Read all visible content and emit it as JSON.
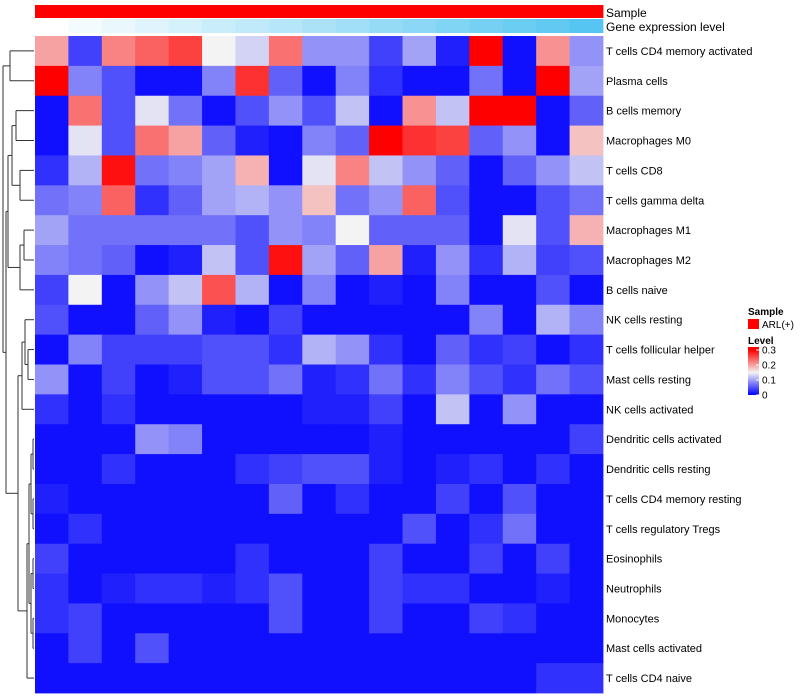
{
  "chart_data": {
    "type": "heatmap",
    "annotations": {
      "sample_label": "Sample",
      "gene_expression_label": "Gene expression level"
    },
    "row_labels": [
      "T cells CD4 memory activated",
      "Plasma cells",
      "B cells memory",
      "Macrophages M0",
      "T cells CD8",
      "T cells gamma delta",
      "Macrophages M1",
      "Macrophages M2",
      "B cells naive",
      "NK cells resting",
      "T cells follicular helper",
      "Mast cells resting",
      "NK cells activated",
      "Dendritic cells activated",
      "Dendritic cells resting",
      "T cells CD4 memory resting",
      "T cells regulatory  Tregs",
      "Eosinophils",
      "Neutrophils",
      "Monocytes",
      "Mast cells activated",
      "T cells CD4 naive"
    ],
    "values": [
      [
        0.2,
        0.04,
        0.22,
        0.24,
        0.26,
        0.15,
        0.13,
        0.23,
        0.09,
        0.09,
        0.04,
        0.1,
        0.02,
        0.32,
        0.01,
        0.21,
        0.09
      ],
      [
        0.32,
        0.08,
        0.05,
        0.01,
        0.01,
        0.08,
        0.27,
        0.06,
        0.01,
        0.08,
        0.03,
        0.01,
        0.01,
        0.07,
        0.01,
        0.31,
        0.1
      ],
      [
        0.01,
        0.23,
        0.05,
        0.14,
        0.07,
        0.01,
        0.05,
        0.09,
        0.05,
        0.12,
        0.01,
        0.21,
        0.12,
        0.31,
        0.32,
        0.01,
        0.06
      ],
      [
        0.01,
        0.14,
        0.05,
        0.23,
        0.2,
        0.06,
        0.02,
        0.01,
        0.08,
        0.06,
        0.32,
        0.27,
        0.26,
        0.06,
        0.09,
        0.01,
        0.18
      ],
      [
        0.03,
        0.11,
        0.29,
        0.07,
        0.08,
        0.1,
        0.19,
        0.01,
        0.14,
        0.22,
        0.12,
        0.09,
        0.06,
        0.01,
        0.06,
        0.09,
        0.12
      ],
      [
        0.07,
        0.08,
        0.24,
        0.03,
        0.06,
        0.1,
        0.11,
        0.09,
        0.18,
        0.07,
        0.09,
        0.24,
        0.05,
        0.01,
        0.01,
        0.05,
        0.07
      ],
      [
        0.1,
        0.07,
        0.07,
        0.07,
        0.07,
        0.07,
        0.05,
        0.09,
        0.08,
        0.15,
        0.06,
        0.06,
        0.06,
        0.01,
        0.14,
        0.05,
        0.19
      ],
      [
        0.08,
        0.07,
        0.06,
        0.01,
        0.02,
        0.12,
        0.05,
        0.29,
        0.1,
        0.06,
        0.2,
        0.02,
        0.09,
        0.03,
        0.11,
        0.04,
        0.05
      ],
      [
        0.04,
        0.15,
        0.01,
        0.09,
        0.12,
        0.25,
        0.11,
        0.01,
        0.08,
        0.01,
        0.02,
        0.01,
        0.08,
        0.01,
        0.01,
        0.05,
        0.01
      ],
      [
        0.05,
        0.01,
        0.01,
        0.06,
        0.09,
        0.02,
        0.01,
        0.04,
        0.01,
        0.01,
        0.01,
        0.01,
        0.01,
        0.08,
        0.01,
        0.11,
        0.08
      ],
      [
        0.01,
        0.08,
        0.04,
        0.04,
        0.04,
        0.05,
        0.05,
        0.03,
        0.11,
        0.09,
        0.03,
        0.01,
        0.06,
        0.03,
        0.04,
        0.01,
        0.03
      ],
      [
        0.09,
        0.01,
        0.04,
        0.01,
        0.02,
        0.05,
        0.05,
        0.07,
        0.02,
        0.03,
        0.07,
        0.03,
        0.08,
        0.05,
        0.03,
        0.07,
        0.05
      ],
      [
        0.03,
        0.01,
        0.03,
        0.01,
        0.01,
        0.01,
        0.01,
        0.01,
        0.02,
        0.02,
        0.04,
        0.01,
        0.12,
        0.01,
        0.09,
        0.01,
        0.01
      ],
      [
        0.01,
        0.01,
        0.01,
        0.09,
        0.08,
        0.01,
        0.01,
        0.01,
        0.01,
        0.01,
        0.02,
        0.01,
        0.01,
        0.01,
        0.01,
        0.01,
        0.04
      ],
      [
        0.01,
        0.01,
        0.03,
        0.01,
        0.01,
        0.01,
        0.03,
        0.04,
        0.05,
        0.05,
        0.02,
        0.01,
        0.02,
        0.03,
        0.01,
        0.03,
        0.01
      ],
      [
        0.02,
        0.01,
        0.01,
        0.01,
        0.01,
        0.01,
        0.01,
        0.06,
        0.01,
        0.03,
        0.01,
        0.01,
        0.04,
        0.01,
        0.05,
        0.01,
        0.01
      ],
      [
        0.01,
        0.03,
        0.01,
        0.01,
        0.01,
        0.01,
        0.01,
        0.01,
        0.01,
        0.01,
        0.01,
        0.05,
        0.01,
        0.03,
        0.07,
        0.01,
        0.01
      ],
      [
        0.04,
        0.01,
        0.01,
        0.01,
        0.01,
        0.01,
        0.03,
        0.01,
        0.01,
        0.01,
        0.04,
        0.01,
        0.01,
        0.04,
        0.01,
        0.04,
        0.01
      ],
      [
        0.03,
        0.01,
        0.02,
        0.03,
        0.03,
        0.02,
        0.03,
        0.05,
        0.01,
        0.01,
        0.04,
        0.03,
        0.03,
        0.01,
        0.01,
        0.02,
        0.01
      ],
      [
        0.03,
        0.04,
        0.01,
        0.01,
        0.01,
        0.01,
        0.01,
        0.05,
        0.01,
        0.01,
        0.04,
        0.01,
        0.01,
        0.04,
        0.03,
        0.01,
        0.01
      ],
      [
        0.01,
        0.04,
        0.01,
        0.05,
        0.01,
        0.01,
        0.01,
        0.01,
        0.01,
        0.01,
        0.01,
        0.01,
        0.01,
        0.01,
        0.01,
        0.01,
        0.01
      ],
      [
        0.01,
        0.01,
        0.01,
        0.01,
        0.01,
        0.01,
        0.01,
        0.01,
        0.01,
        0.01,
        0.01,
        0.01,
        0.01,
        0.01,
        0.01,
        0.03,
        0.03
      ]
    ],
    "column_expression_levels": [
      0.0,
      0.06,
      0.12,
      0.18,
      0.24,
      0.3,
      0.36,
      0.42,
      0.48,
      0.54,
      0.6,
      0.66,
      0.72,
      0.78,
      0.84,
      0.9,
      0.96
    ],
    "color_scale": {
      "domain": [
        0,
        0.15,
        0.3
      ],
      "colors": [
        "#0000ff",
        "#f3f3f3",
        "#ff0000"
      ]
    },
    "expression_colors": [
      "#ffffff",
      "#4fc3f0"
    ],
    "sample_color": "#ff0000",
    "legend": {
      "sample_title": "Sample",
      "sample_entry": "ARL(+)",
      "level_title": "Level",
      "ticks": [
        {
          "label": "0.3",
          "value": 0.3
        },
        {
          "label": "0.2",
          "value": 0.2
        },
        {
          "label": "0.1",
          "value": 0.1
        },
        {
          "label": "0",
          "value": 0
        }
      ],
      "range": [
        0,
        0.32
      ],
      "placement": "right"
    }
  }
}
